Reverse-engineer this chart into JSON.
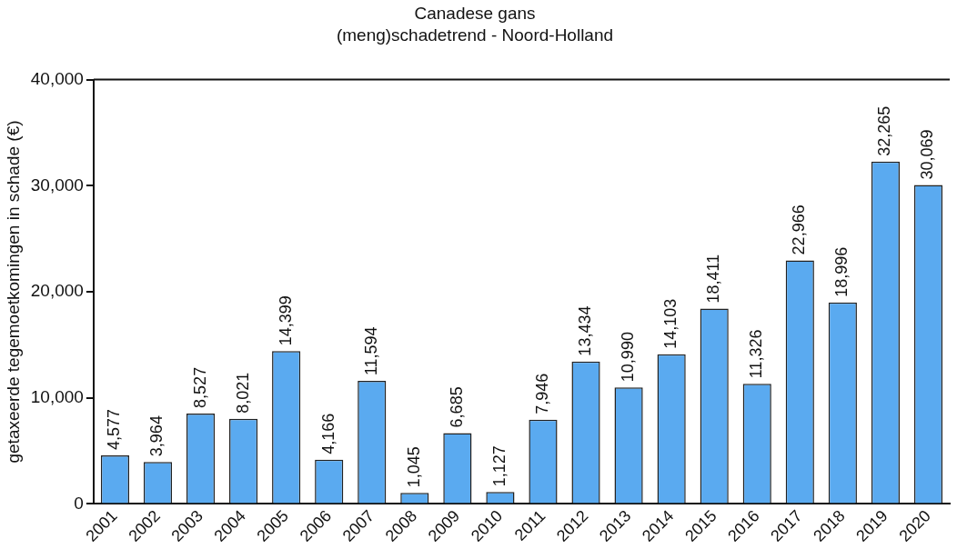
{
  "chart_data": {
    "type": "bar",
    "title": "Canadese gans",
    "subtitle": "(meng)schadetrend - Noord-Holland",
    "ylabel": "getaxeerde tegemoetkomingen in schade (€)",
    "categories": [
      "2001",
      "2002",
      "2003",
      "2004",
      "2005",
      "2006",
      "2007",
      "2008",
      "2009",
      "2010",
      "2011",
      "2012",
      "2013",
      "2014",
      "2015",
      "2016",
      "2017",
      "2018",
      "2019",
      "2020"
    ],
    "values": [
      4577,
      3964,
      8527,
      8021,
      14399,
      4166,
      11594,
      1045,
      6685,
      1127,
      7946,
      13434,
      10990,
      14103,
      18411,
      11326,
      22966,
      18996,
      32265,
      30069
    ],
    "value_labels": [
      "4,577",
      "3,964",
      "8,527",
      "8,021",
      "14,399",
      "4,166",
      "11,594",
      "1,045",
      "6,685",
      "1,127",
      "7,946",
      "13,434",
      "10,990",
      "14,103",
      "18,411",
      "11,326",
      "22,966",
      "18,996",
      "32,265",
      "30,069"
    ],
    "color": "#5aaaf0",
    "ylim": [
      0,
      40000
    ],
    "yticks": [
      {
        "value": 0,
        "label": "0"
      },
      {
        "value": 10000,
        "label": "10,000"
      },
      {
        "value": 20000,
        "label": "20,000"
      },
      {
        "value": 30000,
        "label": "30,000"
      },
      {
        "value": 40000,
        "label": "40,000"
      }
    ],
    "grid": false,
    "legend": false
  }
}
